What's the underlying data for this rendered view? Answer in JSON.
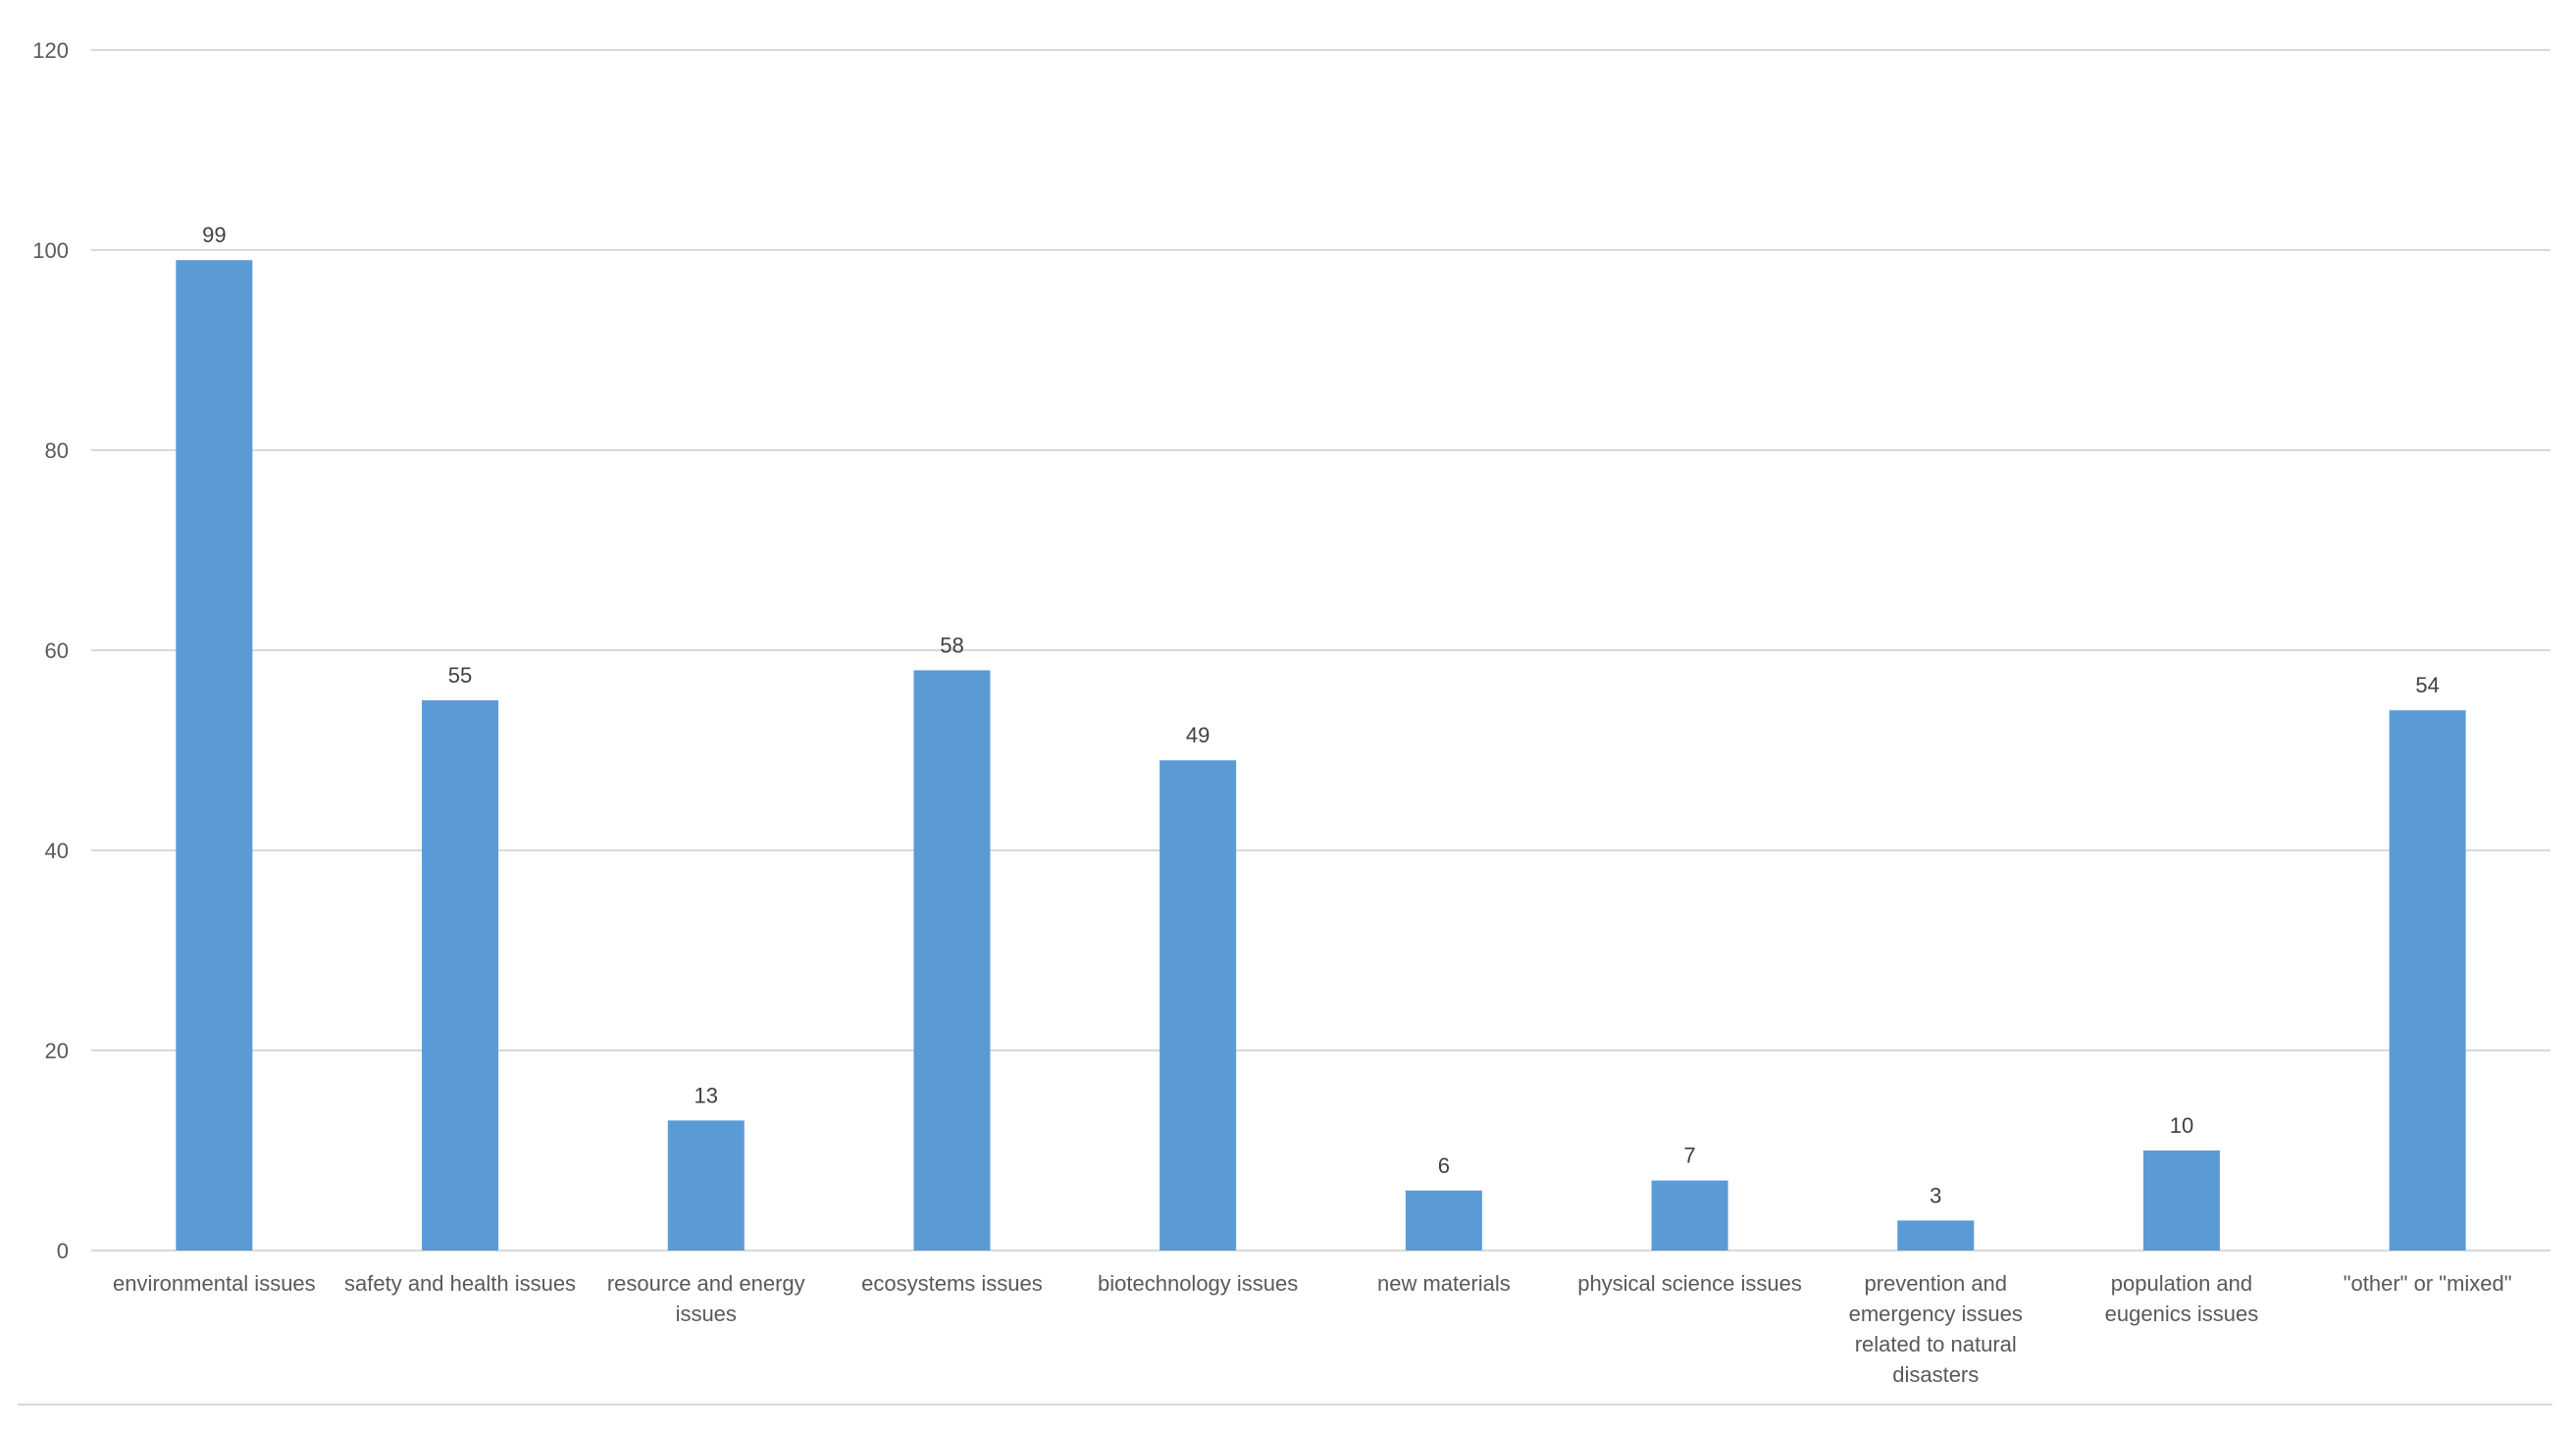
{
  "chart_data": {
    "type": "bar",
    "categories": [
      "environmental issues",
      "safety and health issues",
      "resource and energy issues",
      "ecosystems issues",
      "biotechnology issues",
      "new materials",
      "physical science issues",
      "prevention and emergency issues related to natural disasters",
      "population and eugenics issues",
      "\"other\" or \"mixed\""
    ],
    "category_lines": [
      [
        "environmental issues"
      ],
      [
        "safety and health issues"
      ],
      [
        "resource and energy",
        "issues"
      ],
      [
        "ecosystems issues"
      ],
      [
        "biotechnology issues"
      ],
      [
        "new materials"
      ],
      [
        "physical science issues"
      ],
      [
        "prevention and",
        "emergency issues",
        "related to natural",
        "disasters"
      ],
      [
        "population and",
        "eugenics issues"
      ],
      [
        "\"other\" or \"mixed\""
      ]
    ],
    "values": [
      99,
      55,
      13,
      58,
      49,
      6,
      7,
      3,
      10,
      54
    ],
    "data_labels": [
      "99",
      "55",
      "13",
      "58",
      "49",
      "6",
      "7",
      "3",
      "10",
      "54"
    ],
    "ylim": [
      0,
      120
    ],
    "yticks": [
      0,
      20,
      40,
      60,
      80,
      100,
      120
    ],
    "title": "",
    "xlabel": "",
    "ylabel": "",
    "grid": true,
    "legend": "none",
    "colors": {
      "bar": "#5b9bd5",
      "grid": "#d9d9d9",
      "tick_text": "#595959",
      "label_text": "#404040"
    }
  }
}
